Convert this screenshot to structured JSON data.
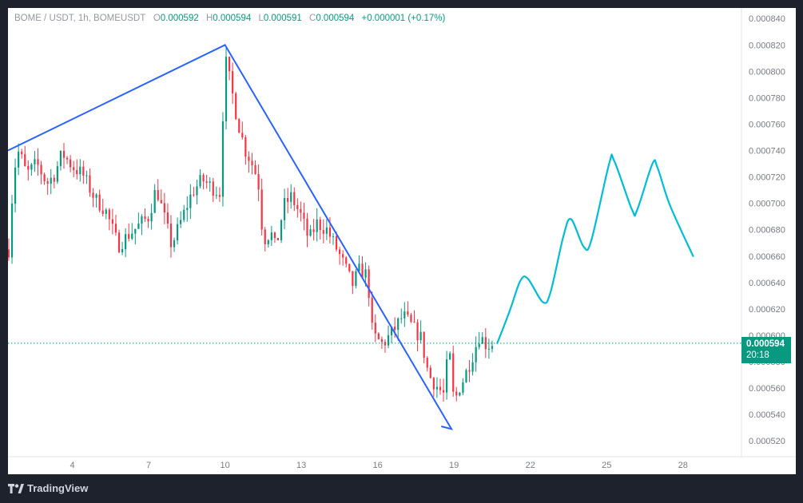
{
  "header": {
    "symbol": "BOME / USDT, 1h, BOMEUSDT",
    "open_label": "O",
    "open": "0.000592",
    "high_label": "H",
    "high": "0.000594",
    "low_label": "L",
    "low": "0.000591",
    "close_label": "C",
    "close": "0.000594",
    "change": "+0.000001 (+0.17%)"
  },
  "price_tag": {
    "price": "0.000594",
    "countdown": "20:18"
  },
  "branding": {
    "logo_text": "TradingView"
  },
  "colors": {
    "up": "#089981",
    "down": "#f23645",
    "trendline": "#2962ff",
    "projection": "#00bcd4",
    "background": "#ffffff"
  },
  "chart_data": {
    "type": "candlestick",
    "y_axis": {
      "ticks": [
        "0.000840",
        "0.000820",
        "0.000800",
        "0.000780",
        "0.000760",
        "0.000740",
        "0.000720",
        "0.000700",
        "0.000680",
        "0.000660",
        "0.000640",
        "0.000620",
        "0.000600",
        "0.000580",
        "0.000560",
        "0.000540",
        "0.000520"
      ],
      "range": [
        0.000508,
        0.000848
      ],
      "side": "right"
    },
    "x_axis": {
      "ticks": [
        {
          "label": "4",
          "day": 4
        },
        {
          "label": "7",
          "day": 7
        },
        {
          "label": "10",
          "day": 10
        },
        {
          "label": "13",
          "day": 13
        },
        {
          "label": "16",
          "day": 16
        },
        {
          "label": "19",
          "day": 19
        },
        {
          "label": "22",
          "day": 22
        },
        {
          "label": "25",
          "day": 25
        },
        {
          "label": "28",
          "day": 28
        }
      ],
      "range": [
        1.47,
        30.3
      ]
    },
    "candles_range": [
      1.5,
      20.5
    ],
    "price_path": [
      [
        1.5,
        0.000665
      ],
      [
        1.7,
        0.000725
      ],
      [
        1.9,
        0.00074
      ],
      [
        2.2,
        0.000722
      ],
      [
        2.6,
        0.00073
      ],
      [
        3.0,
        0.000715
      ],
      [
        3.3,
        0.000722
      ],
      [
        3.6,
        0.000738
      ],
      [
        4.0,
        0.000728
      ],
      [
        4.4,
        0.000722
      ],
      [
        4.9,
        0.000703
      ],
      [
        5.3,
        0.000695
      ],
      [
        5.8,
        0.000668
      ],
      [
        6.2,
        0.000676
      ],
      [
        6.6,
        0.000683
      ],
      [
        7.0,
        0.00069
      ],
      [
        7.3,
        0.000712
      ],
      [
        7.6,
        0.00069
      ],
      [
        7.9,
        0.000668
      ],
      [
        8.3,
        0.000688
      ],
      [
        8.7,
        0.000708
      ],
      [
        9.1,
        0.000718
      ],
      [
        9.5,
        0.000712
      ],
      [
        9.8,
        0.000708
      ],
      [
        10.0,
        0.00081
      ],
      [
        10.2,
        0.000792
      ],
      [
        10.5,
        0.000762
      ],
      [
        10.8,
        0.00074
      ],
      [
        11.0,
        0.000733
      ],
      [
        11.3,
        0.000718
      ],
      [
        11.5,
        0.000672
      ],
      [
        11.8,
        0.000678
      ],
      [
        12.0,
        0.000665
      ],
      [
        12.3,
        0.000698
      ],
      [
        12.6,
        0.000705
      ],
      [
        13.0,
        0.00069
      ],
      [
        13.3,
        0.000672
      ],
      [
        13.6,
        0.000685
      ],
      [
        14.0,
        0.00068
      ],
      [
        14.4,
        0.000665
      ],
      [
        14.8,
        0.000648
      ],
      [
        15.0,
        0.000638
      ],
      [
        15.3,
        0.00065
      ],
      [
        15.6,
        0.000645
      ],
      [
        15.8,
        0.0006
      ],
      [
        16.2,
        0.000593
      ],
      [
        16.6,
        0.000603
      ],
      [
        17.0,
        0.000615
      ],
      [
        17.3,
        0.000608
      ],
      [
        17.7,
        0.000598
      ],
      [
        18.0,
        0.00057
      ],
      [
        18.3,
        0.000562
      ],
      [
        18.6,
        0.000555
      ],
      [
        18.8,
        0.000592
      ],
      [
        19.0,
        0.000548
      ],
      [
        19.2,
        0.00056
      ],
      [
        19.4,
        0.000568
      ],
      [
        19.7,
        0.000583
      ],
      [
        20.0,
        0.0006
      ],
      [
        20.3,
        0.000592
      ],
      [
        20.5,
        0.000594
      ]
    ],
    "trendline": [
      {
        "day": 1.47,
        "price": 0.00074
      },
      {
        "day": 10.0,
        "price": 0.00082
      },
      {
        "day": 18.9,
        "price": 0.000529
      },
      {
        "day": 18.5,
        "price": 0.000531
      }
    ],
    "projection": [
      [
        20.7,
        0.000594
      ],
      [
        21.2,
        0.000619
      ],
      [
        21.6,
        0.000641
      ],
      [
        21.9,
        0.000643
      ],
      [
        22.5,
        0.000625
      ],
      [
        22.8,
        0.000633
      ],
      [
        23.3,
        0.000675
      ],
      [
        23.6,
        0.000688
      ],
      [
        24.1,
        0.000667
      ],
      [
        24.4,
        0.000672
      ],
      [
        25.1,
        0.00073
      ],
      [
        25.3,
        0.000732
      ],
      [
        26.0,
        0.000695
      ],
      [
        26.2,
        0.000695
      ],
      [
        26.8,
        0.00073
      ],
      [
        27.0,
        0.000727
      ],
      [
        27.5,
        0.000698
      ],
      [
        28.4,
        0.00066
      ]
    ],
    "last_price": 0.000594,
    "grid": false
  }
}
